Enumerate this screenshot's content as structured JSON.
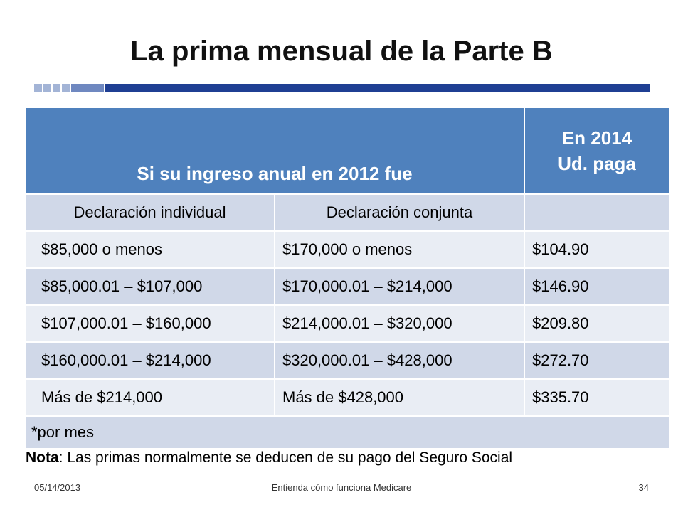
{
  "slide": {
    "title": "La prima mensual de la Parte B"
  },
  "table": {
    "header_income": "Si su ingreso anual en 2012 fue",
    "header_pay_line1": "En 2014",
    "header_pay_line2": "Ud. paga",
    "sub_individual": "Declaración individual",
    "sub_joint": "Declaración conjunta",
    "rows": [
      {
        "individual": "$85,000 o menos",
        "joint": "$170,000 o menos",
        "pay": "$104.90"
      },
      {
        "individual": "$85,000.01 – $107,000",
        "joint": "$170,000.01 – $214,000",
        "pay": "$146.90"
      },
      {
        "individual": "$107,000.01 – $160,000",
        "joint": "$214,000.01 – $320,000",
        "pay": "$209.80"
      },
      {
        "individual": "$160,000.01 – $214,000",
        "joint": "$320,000.01 – $428,000",
        "pay": "$272.70"
      },
      {
        "individual": "Más de $214,000",
        "joint": "Más de $428,000",
        "pay": "$335.70"
      }
    ],
    "footnote": "*por mes"
  },
  "note": {
    "label": "Nota",
    "text": ": Las primas normalmente se deducen de su pago del Seguro Social"
  },
  "footer": {
    "date": "05/14/2013",
    "center": "Entienda cómo funciona Medicare",
    "page": "34"
  },
  "colors": {
    "header_bg": "#4f81bd",
    "row_light": "#e9edf4",
    "row_dark": "#d0d8e8",
    "title_bar": "#1f3f93"
  }
}
